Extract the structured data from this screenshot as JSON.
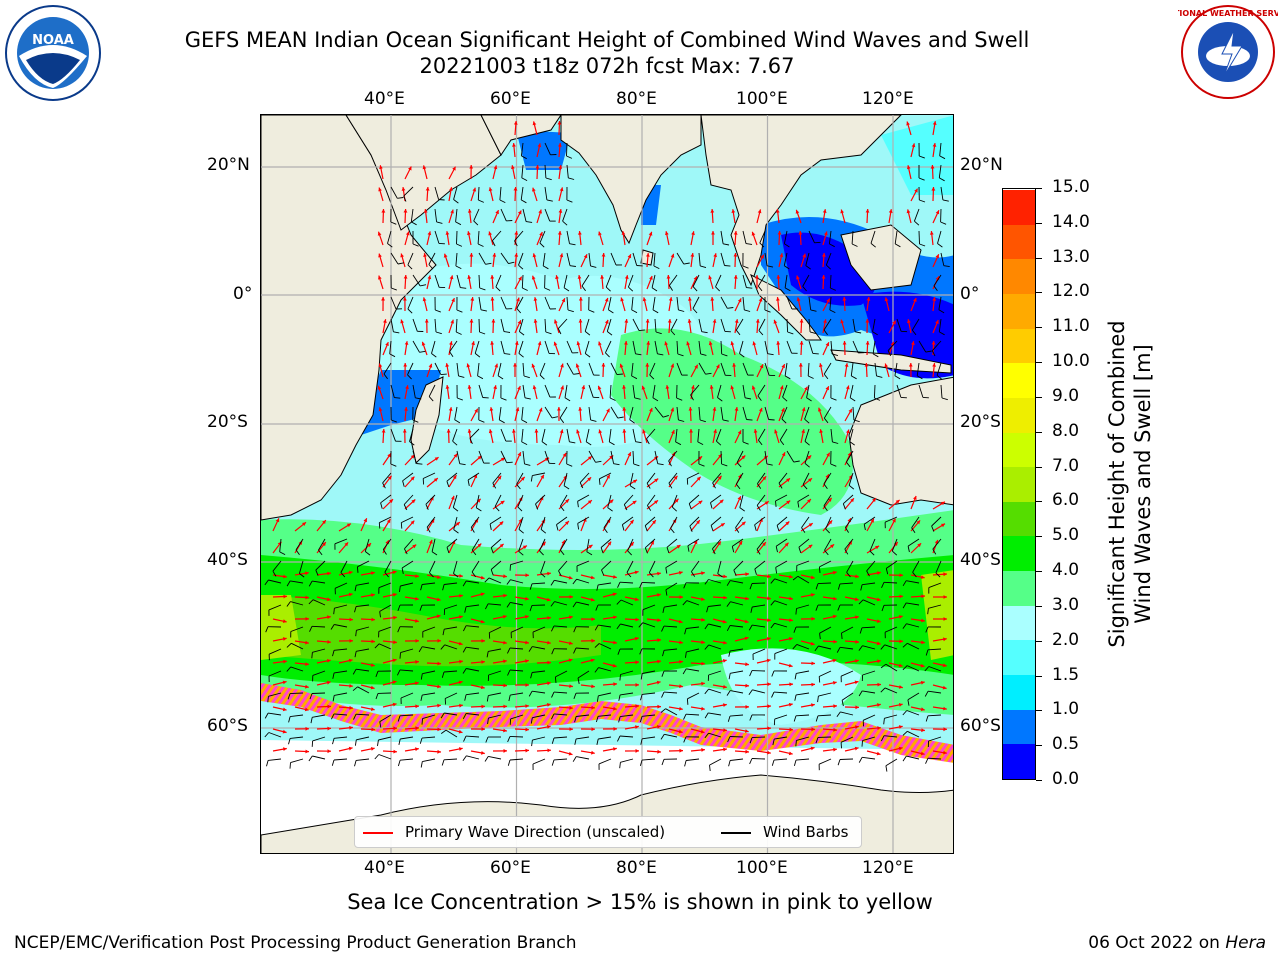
{
  "title": {
    "line1": "GEFS MEAN Indian Ocean Significant Height of Combined Wind Waves and Swell",
    "line2": "20221003 t18z 072h fcst   Max: 7.67"
  },
  "logos": {
    "left": {
      "name": "noaa-logo",
      "text": "NOAA"
    },
    "right": {
      "name": "nws-logo",
      "text": "NATIONAL WEATHER SERVICE"
    }
  },
  "map": {
    "lon_ticks_top": [
      "40°E",
      "60°E",
      "80°E",
      "100°E",
      "120°E"
    ],
    "lon_ticks_bottom": [
      "40°E",
      "60°E",
      "80°E",
      "100°E",
      "120°E"
    ],
    "lat_ticks_left": [
      "20°N",
      "0°",
      "20°S",
      "40°S",
      "60°S"
    ],
    "lat_ticks_right": [
      "20°N",
      "0°",
      "20°S",
      "40°S",
      "60°S"
    ],
    "lon_values": [
      40,
      60,
      80,
      100,
      120
    ],
    "lat_values": [
      20,
      0,
      -20,
      -40,
      -60
    ],
    "land_color": "#efedde",
    "ocean_base_color": "#9ff8f8",
    "ice_colors": [
      "#ff44cc",
      "#ffaa00",
      "#ffff00"
    ]
  },
  "colorbar": {
    "label_line1": "Significant Height of Combined",
    "label_line2": "Wind Waves and Swell [m]",
    "ticks": [
      "0.0",
      "0.5",
      "1.0",
      "1.5",
      "2.0",
      "3.0",
      "4.0",
      "5.0",
      "6.0",
      "7.0",
      "8.0",
      "9.0",
      "10.0",
      "11.0",
      "12.0",
      "13.0",
      "14.0",
      "15.0"
    ],
    "colors": [
      "#0000ff",
      "#0077ff",
      "#00eeff",
      "#55ffff",
      "#aaffff",
      "#55ff88",
      "#00ee00",
      "#55dd00",
      "#aaee00",
      "#ccff00",
      "#eeee00",
      "#ffff00",
      "#ffcc00",
      "#ffaa00",
      "#ff8800",
      "#ff5500",
      "#ff2200"
    ]
  },
  "legend": {
    "items": [
      {
        "label": "Primary Wave Direction (unscaled)",
        "color": "#ff0000"
      },
      {
        "label": "Wind Barbs",
        "color": "#000000"
      }
    ]
  },
  "note": "Sea Ice Concentration > 15% is shown in pink to yellow",
  "footer": {
    "left": "NCEP/EMC/Verification Post Processing Product Generation Branch",
    "right_date": "06 Oct 2022 on ",
    "right_host": "Hera"
  }
}
